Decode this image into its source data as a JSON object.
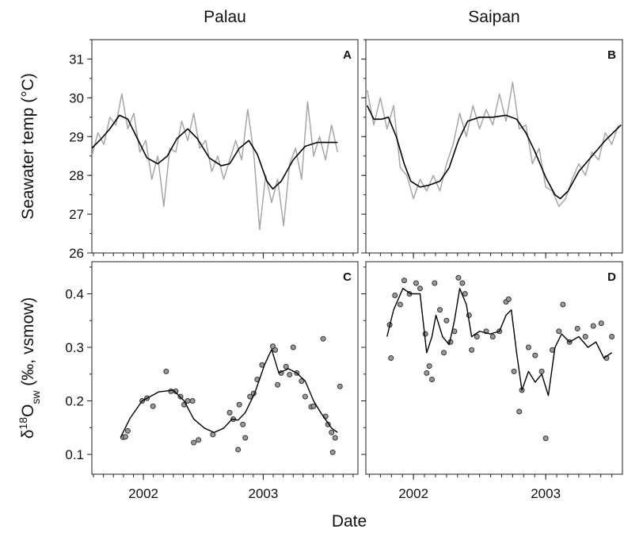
{
  "xlabel": "Date",
  "chart_data": [
    {
      "type": "line",
      "title": "Palau",
      "panel_label": "A",
      "ylabel": {
        "main": "Seawater temp (°C)"
      },
      "xlim": [
        2001.57,
        2003.79
      ],
      "ylim": [
        26,
        31.5
      ],
      "xticks": [
        2002,
        2003
      ],
      "yticks": [
        26,
        27,
        28,
        29,
        30,
        31
      ],
      "x_minor_divisions": 12,
      "y_minor_divisions": 2,
      "xtick_labels": false,
      "ytick_labels": true,
      "series": [
        {
          "mark": "line",
          "color": "#a6a6a6",
          "width": 1.5,
          "x": [
            2001.57,
            2001.62,
            2001.67,
            2001.72,
            2001.77,
            2001.82,
            2001.87,
            2001.92,
            2001.97,
            2002.02,
            2002.07,
            2002.12,
            2002.17,
            2002.22,
            2002.27,
            2002.32,
            2002.37,
            2002.42,
            2002.47,
            2002.52,
            2002.57,
            2002.62,
            2002.67,
            2002.72,
            2002.77,
            2002.82,
            2002.87,
            2002.92,
            2002.97,
            2003.02,
            2003.07,
            2003.12,
            2003.17,
            2003.22,
            2003.27,
            2003.32,
            2003.37,
            2003.42,
            2003.47,
            2003.52,
            2003.57,
            2003.62
          ],
          "values": [
            28.5,
            29.1,
            28.8,
            29.5,
            29.3,
            30.1,
            29.2,
            29.6,
            28.6,
            28.9,
            27.9,
            28.5,
            27.2,
            28.7,
            28.6,
            29.4,
            28.9,
            29.6,
            28.7,
            28.9,
            28.1,
            28.5,
            27.9,
            28.4,
            28.9,
            28.4,
            29.7,
            28.6,
            26.6,
            28.0,
            27.3,
            27.9,
            26.7,
            28.3,
            28.7,
            27.9,
            29.9,
            28.5,
            29.0,
            28.4,
            29.3,
            28.6
          ]
        },
        {
          "mark": "line",
          "color": "#000000",
          "width": 1.6,
          "x": [
            2001.57,
            2001.65,
            2001.72,
            2001.8,
            2001.87,
            2001.95,
            2002.03,
            2002.12,
            2002.2,
            2002.28,
            2002.37,
            2002.45,
            2002.55,
            2002.65,
            2002.72,
            2002.8,
            2002.88,
            2002.95,
            2003.03,
            2003.08,
            2003.15,
            2003.25,
            2003.35,
            2003.45,
            2003.62
          ],
          "values": [
            28.7,
            28.95,
            29.2,
            29.55,
            29.45,
            28.95,
            28.45,
            28.3,
            28.5,
            28.95,
            29.2,
            28.95,
            28.45,
            28.25,
            28.3,
            28.7,
            28.9,
            28.55,
            27.85,
            27.65,
            27.85,
            28.4,
            28.75,
            28.85,
            28.85
          ]
        }
      ]
    },
    {
      "type": "line",
      "title": "Saipan",
      "panel_label": "B",
      "xlim": [
        2001.64,
        2003.58
      ],
      "ylim": [
        26,
        31.5
      ],
      "xticks": [
        2002,
        2003
      ],
      "yticks": [
        26,
        27,
        28,
        29,
        30,
        31
      ],
      "x_minor_divisions": 12,
      "y_minor_divisions": 2,
      "xtick_labels": false,
      "ytick_labels": false,
      "series": [
        {
          "mark": "line",
          "color": "#a6a6a6",
          "width": 1.5,
          "x": [
            2001.65,
            2001.7,
            2001.75,
            2001.8,
            2001.85,
            2001.9,
            2001.95,
            2002.0,
            2002.05,
            2002.1,
            2002.15,
            2002.2,
            2002.25,
            2002.3,
            2002.35,
            2002.4,
            2002.45,
            2002.5,
            2002.55,
            2002.6,
            2002.65,
            2002.7,
            2002.75,
            2002.8,
            2002.85,
            2002.9,
            2002.95,
            2003.0,
            2003.05,
            2003.1,
            2003.15,
            2003.2,
            2003.25,
            2003.3,
            2003.35,
            2003.4,
            2003.45,
            2003.5,
            2003.55
          ],
          "values": [
            30.2,
            29.3,
            30.0,
            29.2,
            29.8,
            28.2,
            28.0,
            27.4,
            27.9,
            27.6,
            28.0,
            27.6,
            28.3,
            28.8,
            29.6,
            29.0,
            29.8,
            29.2,
            29.7,
            29.3,
            30.1,
            29.4,
            30.4,
            29.2,
            29.3,
            28.3,
            28.7,
            27.7,
            27.6,
            27.2,
            27.4,
            27.9,
            28.3,
            28.0,
            28.6,
            28.4,
            29.1,
            28.8,
            29.3
          ]
        },
        {
          "mark": "line",
          "color": "#000000",
          "width": 1.6,
          "x": [
            2001.65,
            2001.7,
            2001.76,
            2001.81,
            2001.87,
            2001.93,
            2001.98,
            2002.05,
            2002.12,
            2002.2,
            2002.27,
            2002.34,
            2002.41,
            2002.5,
            2002.6,
            2002.7,
            2002.78,
            2002.85,
            2002.92,
            2003.0,
            2003.07,
            2003.11,
            2003.17,
            2003.25,
            2003.35,
            2003.45,
            2003.57
          ],
          "values": [
            29.8,
            29.45,
            29.45,
            29.5,
            29.0,
            28.3,
            27.85,
            27.7,
            27.75,
            27.85,
            28.2,
            28.9,
            29.4,
            29.5,
            29.5,
            29.55,
            29.45,
            29.1,
            28.6,
            27.95,
            27.5,
            27.4,
            27.6,
            28.1,
            28.5,
            28.9,
            29.3
          ]
        }
      ]
    },
    {
      "type": "scatter",
      "panel_label": "C",
      "ylabel": {
        "pre": "δ",
        "sup": "18",
        "main": "O",
        "sub": "sw",
        "post": " (‰, vsmow)"
      },
      "xlim": [
        2001.57,
        2003.79
      ],
      "ylim": [
        0.063,
        0.46
      ],
      "xticks": [
        2002,
        2003
      ],
      "yticks": [
        0.1,
        0.2,
        0.3,
        0.4
      ],
      "x_minor_divisions": 12,
      "y_minor_divisions": 2,
      "xtick_labels": true,
      "ytick_labels": true,
      "series": [
        {
          "mark": "points",
          "color": "#9a9a9a",
          "x": [
            2001.83,
            2001.85,
            2001.87,
            2001.99,
            2002.03,
            2002.08,
            2002.19,
            2002.23,
            2002.27,
            2002.31,
            2002.34,
            2002.37,
            2002.41,
            2002.42,
            2002.46,
            2002.58,
            2002.72,
            2002.75,
            2002.79,
            2002.8,
            2002.83,
            2002.85,
            2002.89,
            2002.92,
            2002.95,
            2002.99,
            2003.08,
            2003.1,
            2003.12,
            2003.15,
            2003.19,
            2003.22,
            2003.25,
            2003.28,
            2003.32,
            2003.35,
            2003.4,
            2003.42,
            2003.5,
            2003.52,
            2003.54,
            2003.57,
            2003.58,
            2003.6,
            2003.64
          ],
          "values": [
            0.132,
            0.133,
            0.144,
            0.2,
            0.205,
            0.19,
            0.255,
            0.218,
            0.218,
            0.208,
            0.193,
            0.2,
            0.2,
            0.122,
            0.127,
            0.137,
            0.178,
            0.166,
            0.109,
            0.193,
            0.156,
            0.131,
            0.208,
            0.214,
            0.24,
            0.267,
            0.302,
            0.295,
            0.23,
            0.252,
            0.264,
            0.249,
            0.3,
            0.252,
            0.237,
            0.208,
            0.189,
            0.19,
            0.316,
            0.171,
            0.156,
            0.141,
            0.104,
            0.131,
            0.227
          ]
        },
        {
          "mark": "line",
          "color": "#000000",
          "width": 1.4,
          "x": [
            2001.81,
            2001.89,
            2001.99,
            2002.13,
            2002.25,
            2002.34,
            2002.42,
            2002.51,
            2002.59,
            2002.67,
            2002.74,
            2002.79,
            2002.85,
            2002.93,
            2003.01,
            2003.07,
            2003.13,
            2003.21,
            2003.28,
            2003.35,
            2003.42,
            2003.48,
            2003.57,
            2003.62
          ],
          "values": [
            0.132,
            0.168,
            0.2,
            0.217,
            0.22,
            0.2,
            0.166,
            0.149,
            0.141,
            0.149,
            0.166,
            0.164,
            0.178,
            0.215,
            0.267,
            0.296,
            0.252,
            0.26,
            0.252,
            0.237,
            0.2,
            0.178,
            0.149,
            0.141
          ]
        }
      ]
    },
    {
      "type": "scatter",
      "panel_label": "D",
      "xlim": [
        2001.64,
        2003.58
      ],
      "ylim": [
        0.063,
        0.46
      ],
      "xticks": [
        2002,
        2003
      ],
      "yticks": [
        0.1,
        0.2,
        0.3,
        0.4
      ],
      "x_minor_divisions": 12,
      "y_minor_divisions": 2,
      "xtick_labels": true,
      "ytick_labels": false,
      "series": [
        {
          "mark": "points",
          "color": "#9a9a9a",
          "x": [
            2001.82,
            2001.83,
            2001.86,
            2001.9,
            2001.93,
            2001.97,
            2002.02,
            2002.05,
            2002.09,
            2002.1,
            2002.12,
            2002.14,
            2002.16,
            2002.2,
            2002.23,
            2002.25,
            2002.28,
            2002.31,
            2002.34,
            2002.37,
            2002.39,
            2002.42,
            2002.44,
            2002.48,
            2002.55,
            2002.6,
            2002.65,
            2002.7,
            2002.72,
            2002.76,
            2002.8,
            2002.82,
            2002.87,
            2002.92,
            2002.97,
            2003.0,
            2003.05,
            2003.1,
            2003.13,
            2003.18,
            2003.24,
            2003.3,
            2003.36,
            2003.42,
            2003.46,
            2003.5
          ],
          "values": [
            0.342,
            0.28,
            0.397,
            0.38,
            0.425,
            0.4,
            0.42,
            0.41,
            0.325,
            0.252,
            0.265,
            0.24,
            0.42,
            0.37,
            0.29,
            0.35,
            0.31,
            0.33,
            0.43,
            0.42,
            0.4,
            0.36,
            0.295,
            0.32,
            0.33,
            0.32,
            0.33,
            0.385,
            0.39,
            0.255,
            0.18,
            0.22,
            0.3,
            0.285,
            0.255,
            0.13,
            0.295,
            0.33,
            0.38,
            0.31,
            0.335,
            0.32,
            0.34,
            0.345,
            0.28,
            0.32
          ]
        },
        {
          "mark": "line",
          "color": "#000000",
          "width": 1.4,
          "x": [
            2001.8,
            2001.85,
            2001.92,
            2001.98,
            2002.05,
            2002.1,
            2002.14,
            2002.17,
            2002.22,
            2002.27,
            2002.31,
            2002.35,
            2002.4,
            2002.44,
            2002.5,
            2002.58,
            2002.65,
            2002.7,
            2002.74,
            2002.78,
            2002.82,
            2002.87,
            2002.92,
            2002.97,
            2003.02,
            2003.07,
            2003.12,
            2003.18,
            2003.25,
            2003.32,
            2003.38,
            2003.44,
            2003.5
          ],
          "values": [
            0.32,
            0.37,
            0.41,
            0.4,
            0.4,
            0.29,
            0.32,
            0.36,
            0.32,
            0.305,
            0.35,
            0.41,
            0.38,
            0.32,
            0.33,
            0.325,
            0.33,
            0.36,
            0.37,
            0.29,
            0.22,
            0.255,
            0.235,
            0.25,
            0.21,
            0.3,
            0.325,
            0.31,
            0.32,
            0.3,
            0.31,
            0.28,
            0.29
          ]
        }
      ]
    }
  ]
}
